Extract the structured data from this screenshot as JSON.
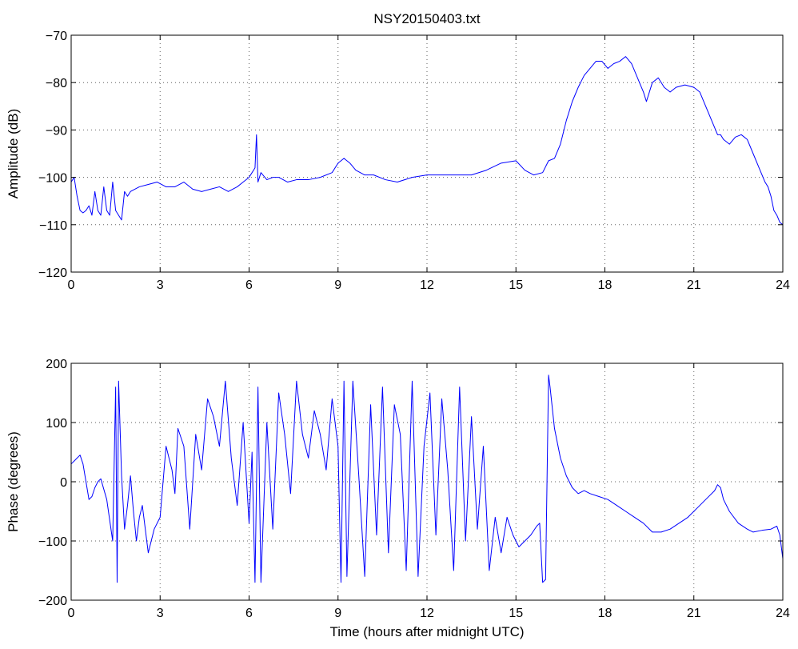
{
  "figure_title": "NSY20150403.txt",
  "colors": {
    "series": "#0000ff",
    "axes": "#000000",
    "background": "#ffffff"
  },
  "chart_data": [
    {
      "type": "line",
      "title": "NSY20150403.txt",
      "xlabel": "",
      "ylabel": "Amplitude (dB)",
      "xlim": [
        0,
        24
      ],
      "ylim": [
        -120,
        -70
      ],
      "xticks": [
        0,
        3,
        6,
        9,
        12,
        15,
        18,
        21,
        24
      ],
      "yticks": [
        -120,
        -110,
        -100,
        -90,
        -80,
        -70
      ],
      "xtick_labels": [
        "0",
        "3",
        "6",
        "9",
        "12",
        "15",
        "18",
        "21",
        "24"
      ],
      "ytick_labels": [
        "−120",
        "−110",
        "−100",
        "−90",
        "−80",
        "−70"
      ],
      "grid": true,
      "series": [
        {
          "color": "#0000ff",
          "x": [
            0,
            0.1,
            0.2,
            0.3,
            0.4,
            0.5,
            0.6,
            0.7,
            0.8,
            0.9,
            1.0,
            1.1,
            1.2,
            1.3,
            1.4,
            1.5,
            1.6,
            1.7,
            1.8,
            1.9,
            2.0,
            2.3,
            2.6,
            2.9,
            3.2,
            3.5,
            3.8,
            4.1,
            4.4,
            4.7,
            5.0,
            5.3,
            5.6,
            5.8,
            6.0,
            6.1,
            6.2,
            6.25,
            6.3,
            6.4,
            6.6,
            6.8,
            7.0,
            7.3,
            7.6,
            8.0,
            8.4,
            8.8,
            9.0,
            9.2,
            9.4,
            9.6,
            9.9,
            10.2,
            10.6,
            11.0,
            11.5,
            12.0,
            12.5,
            13.0,
            13.5,
            14.0,
            14.5,
            15.0,
            15.3,
            15.6,
            15.9,
            16.1,
            16.3,
            16.5,
            16.7,
            16.9,
            17.1,
            17.3,
            17.5,
            17.7,
            17.9,
            18.1,
            18.3,
            18.5,
            18.7,
            18.9,
            19.1,
            19.3,
            19.4,
            19.5,
            19.6,
            19.8,
            20.0,
            20.2,
            20.4,
            20.7,
            21.0,
            21.2,
            21.4,
            21.6,
            21.8,
            21.9,
            22.0,
            22.2,
            22.4,
            22.6,
            22.8,
            23.0,
            23.2,
            23.4,
            23.5,
            23.6,
            23.7,
            23.8,
            23.9,
            24.0
          ],
          "y": [
            -101,
            -100,
            -104,
            -107,
            -107.5,
            -107,
            -106,
            -108,
            -103,
            -107,
            -108,
            -102,
            -107,
            -108,
            -101,
            -107,
            -108,
            -109,
            -103,
            -104,
            -103,
            -102,
            -101.5,
            -101,
            -102,
            -102,
            -101,
            -102.5,
            -103,
            -102.5,
            -102,
            -103,
            -102,
            -101,
            -100,
            -99,
            -98,
            -91,
            -101,
            -99,
            -100.5,
            -100,
            -100,
            -101,
            -100.5,
            -100.5,
            -100,
            -99,
            -97,
            -96,
            -97,
            -98.5,
            -99.5,
            -99.5,
            -100.5,
            -101,
            -100,
            -99.5,
            -99.5,
            -99.5,
            -99.5,
            -98.5,
            -97,
            -96.5,
            -98.5,
            -99.5,
            -99,
            -96.5,
            -96,
            -93,
            -88,
            -84,
            -81,
            -78.5,
            -77,
            -75.5,
            -75.5,
            -77,
            -76,
            -75.5,
            -74.5,
            -76,
            -79,
            -82,
            -84,
            -82,
            -80,
            -79,
            -81,
            -82,
            -81,
            -80.5,
            -81,
            -82,
            -85,
            -88,
            -91,
            -91,
            -92,
            -93,
            -91.5,
            -91,
            -92,
            -95,
            -98,
            -101,
            -102,
            -104,
            -107,
            -108,
            -109.5,
            -110
          ]
        }
      ]
    },
    {
      "type": "line",
      "title": "",
      "xlabel": "Time (hours after midnight UTC)",
      "ylabel": "Phase (degrees)",
      "xlim": [
        0,
        24
      ],
      "ylim": [
        -200,
        200
      ],
      "xticks": [
        0,
        3,
        6,
        9,
        12,
        15,
        18,
        21,
        24
      ],
      "yticks": [
        -200,
        -100,
        0,
        100,
        200
      ],
      "xtick_labels": [
        "0",
        "3",
        "6",
        "9",
        "12",
        "15",
        "18",
        "21",
        "24"
      ],
      "ytick_labels": [
        "−200",
        "−100",
        "0",
        "100",
        "200"
      ],
      "grid": true,
      "series": [
        {
          "color": "#0000ff",
          "x": [
            0,
            0.1,
            0.2,
            0.3,
            0.4,
            0.5,
            0.6,
            0.7,
            0.8,
            0.9,
            1.0,
            1.2,
            1.4,
            1.5,
            1.55,
            1.6,
            1.7,
            1.8,
            1.9,
            2.0,
            2.1,
            2.2,
            2.3,
            2.4,
            2.6,
            2.8,
            3.0,
            3.2,
            3.4,
            3.5,
            3.6,
            3.8,
            4.0,
            4.2,
            4.4,
            4.6,
            4.8,
            5.0,
            5.2,
            5.4,
            5.6,
            5.8,
            6.0,
            6.1,
            6.2,
            6.3,
            6.4,
            6.6,
            6.8,
            7.0,
            7.2,
            7.4,
            7.6,
            7.8,
            8.0,
            8.2,
            8.4,
            8.6,
            8.8,
            9.0,
            9.1,
            9.2,
            9.3,
            9.5,
            9.7,
            9.9,
            10.1,
            10.3,
            10.5,
            10.7,
            10.9,
            11.1,
            11.3,
            11.5,
            11.7,
            11.9,
            12.1,
            12.3,
            12.5,
            12.7,
            12.9,
            13.1,
            13.3,
            13.5,
            13.7,
            13.9,
            14.1,
            14.3,
            14.5,
            14.7,
            14.9,
            15.1,
            15.3,
            15.5,
            15.7,
            15.8,
            15.9,
            16.0,
            16.1,
            16.15,
            16.3,
            16.5,
            16.7,
            16.9,
            17.1,
            17.3,
            17.5,
            17.8,
            18.1,
            18.4,
            18.7,
            19.0,
            19.3,
            19.6,
            19.9,
            20.2,
            20.5,
            20.8,
            21.1,
            21.4,
            21.7,
            21.8,
            21.9,
            22.0,
            22.2,
            22.5,
            22.8,
            23.0,
            23.3,
            23.6,
            23.8,
            23.9,
            24.0
          ],
          "y": [
            30,
            35,
            40,
            45,
            30,
            0,
            -30,
            -25,
            -10,
            0,
            5,
            -30,
            -100,
            160,
            -170,
            170,
            10,
            -80,
            -40,
            10,
            -50,
            -100,
            -60,
            -40,
            -120,
            -80,
            -60,
            60,
            20,
            -20,
            90,
            60,
            -80,
            80,
            20,
            140,
            110,
            60,
            170,
            40,
            -40,
            100,
            -70,
            50,
            -170,
            160,
            -170,
            100,
            -80,
            150,
            80,
            -20,
            170,
            80,
            40,
            120,
            80,
            20,
            140,
            60,
            -170,
            170,
            -160,
            170,
            10,
            -160,
            130,
            -90,
            160,
            -120,
            130,
            80,
            -150,
            170,
            -160,
            60,
            150,
            -90,
            140,
            20,
            -150,
            160,
            -100,
            110,
            -80,
            60,
            -150,
            -60,
            -120,
            -60,
            -90,
            -110,
            -100,
            -90,
            -75,
            -70,
            -170,
            -165,
            180,
            160,
            90,
            40,
            10,
            -10,
            -20,
            -15,
            -20,
            -25,
            -30,
            -40,
            -50,
            -60,
            -70,
            -85,
            -85,
            -80,
            -70,
            -60,
            -45,
            -30,
            -15,
            -5,
            -10,
            -30,
            -50,
            -70,
            -80,
            -85,
            -82,
            -80,
            -75,
            -90,
            -130
          ]
        }
      ]
    }
  ]
}
